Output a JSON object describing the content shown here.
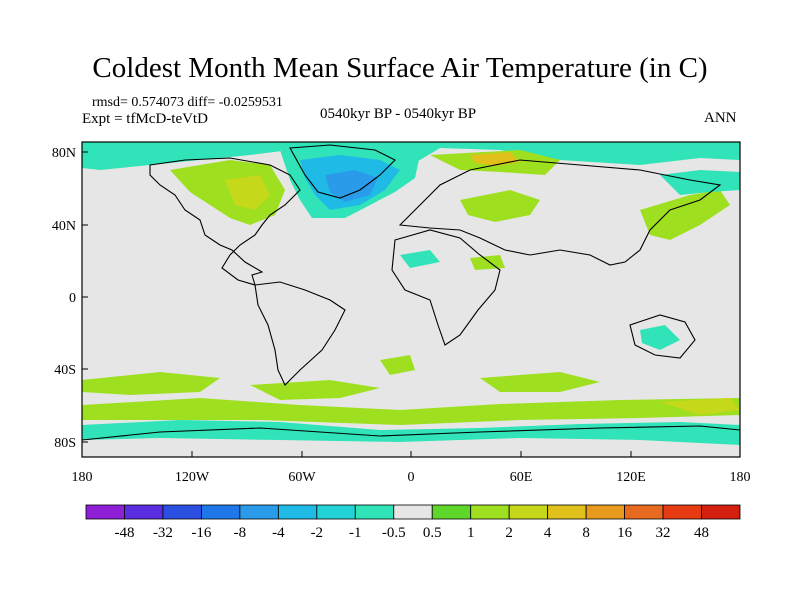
{
  "title": "Coldest Month Mean Surface Air Temperature (in C)",
  "stats": {
    "line1": "rmsd= 0.574073 diff= -0.0259531",
    "line2": "Expt = tfMcD-teVtD"
  },
  "subtitle_center": "0540kyr BP - 0540kyr BP",
  "subtitle_right": "ANN",
  "axes": {
    "y_ticks": [
      "80N",
      "40N",
      "0",
      "40S",
      "80S"
    ],
    "x_ticks": [
      "180",
      "120W",
      "60W",
      "0",
      "60E",
      "120E",
      "180"
    ]
  },
  "colorbar": {
    "labels": [
      "-48",
      "-32",
      "-16",
      "-8",
      "-4",
      "-2",
      "-1",
      "-0.5",
      "0.5",
      "1",
      "2",
      "4",
      "8",
      "16",
      "32",
      "48"
    ],
    "colors": [
      "#8f1fd6",
      "#5a2ee0",
      "#2b4fe0",
      "#1f78e8",
      "#2a9be8",
      "#1fbbe6",
      "#22d3d6",
      "#30e3b8",
      "#e6e6e6",
      "#5ed62a",
      "#9ee020",
      "#c6d81a",
      "#e0c01a",
      "#e89a1f",
      "#e86a1f",
      "#e63a12",
      "#d41f10"
    ]
  },
  "map_colors": {
    "background": "#e6e6e6",
    "negative_light": "#30e3b8",
    "negative_mid": "#1fbbe6",
    "negative_strong": "#2a9be8",
    "positive_light": "#9ee020",
    "positive_mid": "#c6d81a",
    "positive_warm": "#e0c01a"
  }
}
